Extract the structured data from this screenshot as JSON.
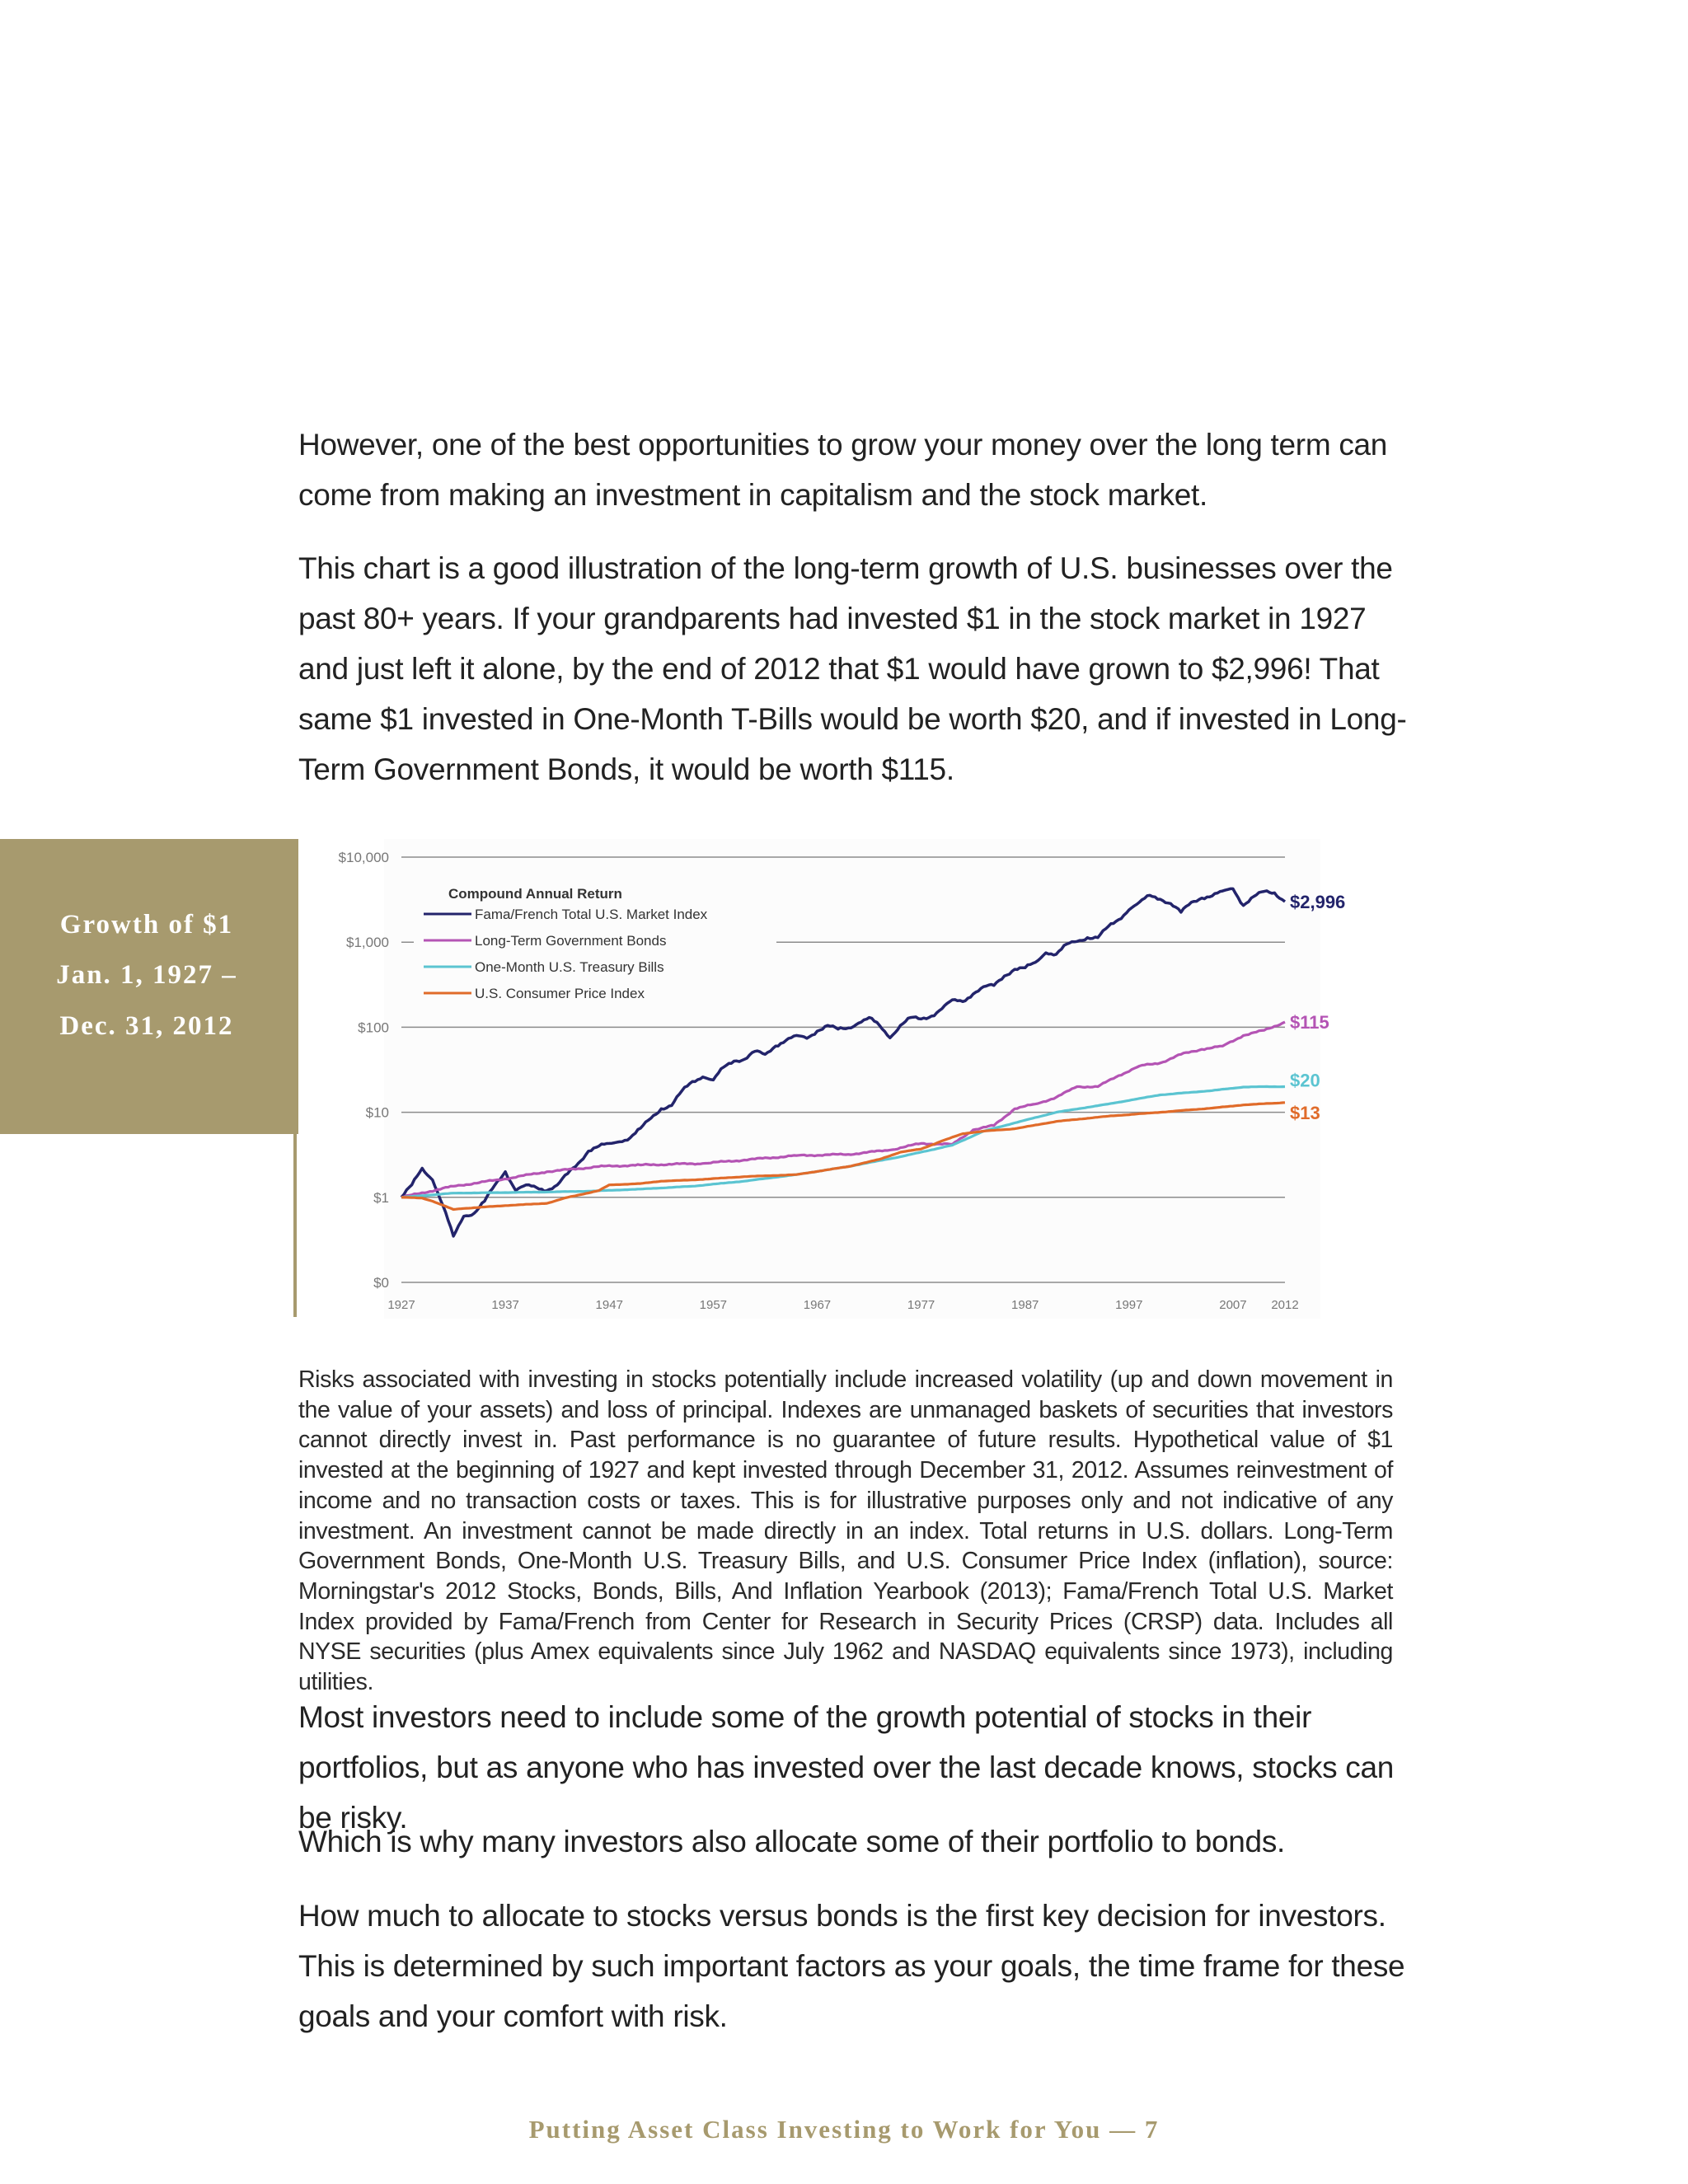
{
  "paragraphs": {
    "p1": "However, one of the best opportunities to grow your money over the long term can come from making an investment in capitalism and the stock market.",
    "p2": "This chart is a good illustration of the long-term growth of U.S. businesses over the past 80+ years. If your grandparents had invested $1 in the stock market in 1927 and just left it alone, by the end of 2012 that $1 would have grown to $2,996! That same $1 invested in One-Month T-Bills would be worth $20, and if invested in Long-Term Government Bonds, it would be worth $115.",
    "p3": "Most investors need to include some of the growth potential of stocks in their portfolios, but as anyone who has invested over the last decade knows, stocks can be risky.",
    "p4": "Which is why many investors also allocate some of their portfolio to bonds.",
    "p5": "How much to allocate to stocks versus bonds is the first key decision for investors. This is determined by such important factors as your goals, the time frame for these goals and your comfort with risk."
  },
  "disclaimer": "Risks associated with investing in stocks potentially include increased volatility (up and down movement in the value of your assets) and loss of principal. Indexes are unmanaged baskets of securities that investors cannot directly invest in. Past performance is no guarantee of future results. Hypothetical value of $1 invested at the beginning of 1927 and kept invested through December 31, 2012. Assumes reinvestment of income and no transaction costs or taxes. This is for illustrative purposes only and not indicative of any investment. An investment cannot be made directly in an index. Total returns in U.S. dollars. Long-Term Government Bonds, One-Month U.S. Treasury Bills, and U.S. Consumer Price Index (inflation), source: Morningstar's 2012 Stocks, Bonds, Bills, And Inflation Yearbook (2013); Fama/French Total U.S. Market Index provided by Fama/French from Center for Research in Security Prices (CRSP) data. Includes all NYSE securities (plus Amex equivalents since July 1962 and NASDAQ equivalents since 1973), including utilities.",
  "sidebar": {
    "line1": "Growth of $1",
    "line2": "Jan. 1, 1927  –",
    "line3": "Dec. 31, 2012"
  },
  "footer": "Putting Asset Class Investing to Work for You — 7",
  "colors": {
    "accent": "#a79a6e",
    "stocks": "#23246b",
    "bonds": "#b454b4",
    "tbills": "#5bc4d1",
    "cpi": "#e06b2a",
    "grid": "#8c8c8c"
  },
  "chart_data": {
    "type": "line",
    "scale": "log",
    "legend_title": "Compound Annual Return",
    "legend_placement": "top-left",
    "y_ticks": [
      {
        "label": "$10,000",
        "value": 10000
      },
      {
        "label": "$1,000",
        "value": 1000
      },
      {
        "label": "$100",
        "value": 100
      },
      {
        "label": "$10",
        "value": 10
      },
      {
        "label": "$1",
        "value": 1
      },
      {
        "label": "$0",
        "value": 0.1
      }
    ],
    "x_ticks": [
      1927,
      1937,
      1947,
      1957,
      1967,
      1977,
      1987,
      1997,
      2007,
      2012
    ],
    "xlim": [
      1927,
      2012
    ],
    "ylim": [
      0.1,
      10000
    ],
    "series": [
      {
        "name": "Fama/French Total U.S. Market Index",
        "color": "#23246b",
        "end_label": "$2,996",
        "points": [
          [
            1927,
            1.0
          ],
          [
            1928,
            1.4
          ],
          [
            1929,
            2.2
          ],
          [
            1930,
            1.6
          ],
          [
            1931,
            0.8
          ],
          [
            1932,
            0.35
          ],
          [
            1933,
            0.6
          ],
          [
            1934,
            0.65
          ],
          [
            1935,
            0.9
          ],
          [
            1936,
            1.4
          ],
          [
            1937,
            2.0
          ],
          [
            1938,
            1.2
          ],
          [
            1939,
            1.4
          ],
          [
            1940,
            1.3
          ],
          [
            1941,
            1.2
          ],
          [
            1942,
            1.4
          ],
          [
            1943,
            1.9
          ],
          [
            1944,
            2.5
          ],
          [
            1945,
            3.5
          ],
          [
            1946,
            4.0
          ],
          [
            1947,
            4.3
          ],
          [
            1948,
            4.5
          ],
          [
            1949,
            5.0
          ],
          [
            1950,
            6.5
          ],
          [
            1951,
            8.5
          ],
          [
            1952,
            11
          ],
          [
            1953,
            12
          ],
          [
            1954,
            18
          ],
          [
            1955,
            23
          ],
          [
            1956,
            26
          ],
          [
            1957,
            24
          ],
          [
            1958,
            34
          ],
          [
            1959,
            40
          ],
          [
            1960,
            42
          ],
          [
            1961,
            52
          ],
          [
            1962,
            48
          ],
          [
            1963,
            60
          ],
          [
            1964,
            70
          ],
          [
            1965,
            80
          ],
          [
            1966,
            74
          ],
          [
            1967,
            90
          ],
          [
            1968,
            105
          ],
          [
            1969,
            95
          ],
          [
            1970,
            98
          ],
          [
            1971,
            112
          ],
          [
            1972,
            130
          ],
          [
            1973,
            105
          ],
          [
            1974,
            75
          ],
          [
            1975,
            105
          ],
          [
            1976,
            130
          ],
          [
            1977,
            125
          ],
          [
            1978,
            135
          ],
          [
            1979,
            165
          ],
          [
            1980,
            210
          ],
          [
            1981,
            200
          ],
          [
            1982,
            245
          ],
          [
            1983,
            300
          ],
          [
            1984,
            310
          ],
          [
            1985,
            400
          ],
          [
            1986,
            480
          ],
          [
            1987,
            500
          ],
          [
            1988,
            580
          ],
          [
            1989,
            750
          ],
          [
            1990,
            720
          ],
          [
            1991,
            950
          ],
          [
            1992,
            1020
          ],
          [
            1993,
            1130
          ],
          [
            1994,
            1130
          ],
          [
            1995,
            1530
          ],
          [
            1996,
            1840
          ],
          [
            1997,
            2400
          ],
          [
            1998,
            2950
          ],
          [
            1999,
            3550
          ],
          [
            2000,
            3200
          ],
          [
            2001,
            2850
          ],
          [
            2002,
            2250
          ],
          [
            2003,
            2950
          ],
          [
            2004,
            3300
          ],
          [
            2005,
            3500
          ],
          [
            2006,
            4000
          ],
          [
            2007,
            4250
          ],
          [
            2008,
            2700
          ],
          [
            2009,
            3450
          ],
          [
            2010,
            3950
          ],
          [
            2011,
            3800
          ],
          [
            2012,
            2996
          ]
        ]
      },
      {
        "name": "Long-Term Government Bonds",
        "color": "#b454b4",
        "end_label": "$115",
        "points": [
          [
            1927,
            1.0
          ],
          [
            1932,
            1.35
          ],
          [
            1937,
            1.65
          ],
          [
            1941,
            2.0
          ],
          [
            1946,
            2.3
          ],
          [
            1950,
            2.4
          ],
          [
            1956,
            2.5
          ],
          [
            1960,
            2.75
          ],
          [
            1965,
            3.1
          ],
          [
            1970,
            3.2
          ],
          [
            1974,
            3.6
          ],
          [
            1977,
            4.3
          ],
          [
            1980,
            4.2
          ],
          [
            1982,
            6.2
          ],
          [
            1984,
            7.0
          ],
          [
            1986,
            11
          ],
          [
            1988,
            12.5
          ],
          [
            1990,
            15
          ],
          [
            1992,
            20
          ],
          [
            1994,
            20
          ],
          [
            1996,
            27
          ],
          [
            1998,
            35
          ],
          [
            2000,
            38
          ],
          [
            2002,
            48
          ],
          [
            2004,
            55
          ],
          [
            2006,
            60
          ],
          [
            2008,
            80
          ],
          [
            2010,
            92
          ],
          [
            2012,
            115
          ]
        ]
      },
      {
        "name": "One-Month U.S. Treasury Bills",
        "color": "#5bc4d1",
        "end_label": "$20",
        "points": [
          [
            1927,
            1.0
          ],
          [
            1932,
            1.12
          ],
          [
            1940,
            1.15
          ],
          [
            1945,
            1.18
          ],
          [
            1950,
            1.25
          ],
          [
            1955,
            1.35
          ],
          [
            1960,
            1.55
          ],
          [
            1965,
            1.85
          ],
          [
            1970,
            2.3
          ],
          [
            1975,
            3.0
          ],
          [
            1980,
            4.1
          ],
          [
            1983,
            6.0
          ],
          [
            1986,
            7.5
          ],
          [
            1990,
            10.0
          ],
          [
            1995,
            12.5
          ],
          [
            2000,
            16
          ],
          [
            2005,
            18
          ],
          [
            2008,
            19.8
          ],
          [
            2010,
            20
          ],
          [
            2012,
            20
          ]
        ]
      },
      {
        "name": "U.S. Consumer Price Index",
        "color": "#e06b2a",
        "end_label": "$13",
        "points": [
          [
            1927,
            1.0
          ],
          [
            1929,
            0.98
          ],
          [
            1930,
            0.9
          ],
          [
            1932,
            0.72
          ],
          [
            1933,
            0.74
          ],
          [
            1937,
            0.8
          ],
          [
            1941,
            0.85
          ],
          [
            1943,
            1.0
          ],
          [
            1946,
            1.2
          ],
          [
            1947,
            1.4
          ],
          [
            1950,
            1.45
          ],
          [
            1952,
            1.55
          ],
          [
            1955,
            1.6
          ],
          [
            1960,
            1.75
          ],
          [
            1965,
            1.85
          ],
          [
            1970,
            2.3
          ],
          [
            1973,
            2.8
          ],
          [
            1975,
            3.4
          ],
          [
            1977,
            3.7
          ],
          [
            1979,
            4.6
          ],
          [
            1981,
            5.6
          ],
          [
            1983,
            6.0
          ],
          [
            1986,
            6.4
          ],
          [
            1990,
            7.8
          ],
          [
            1995,
            9.0
          ],
          [
            2000,
            10.0
          ],
          [
            2005,
            11.2
          ],
          [
            2008,
            12.2
          ],
          [
            2010,
            12.6
          ],
          [
            2012,
            13
          ]
        ]
      }
    ]
  }
}
